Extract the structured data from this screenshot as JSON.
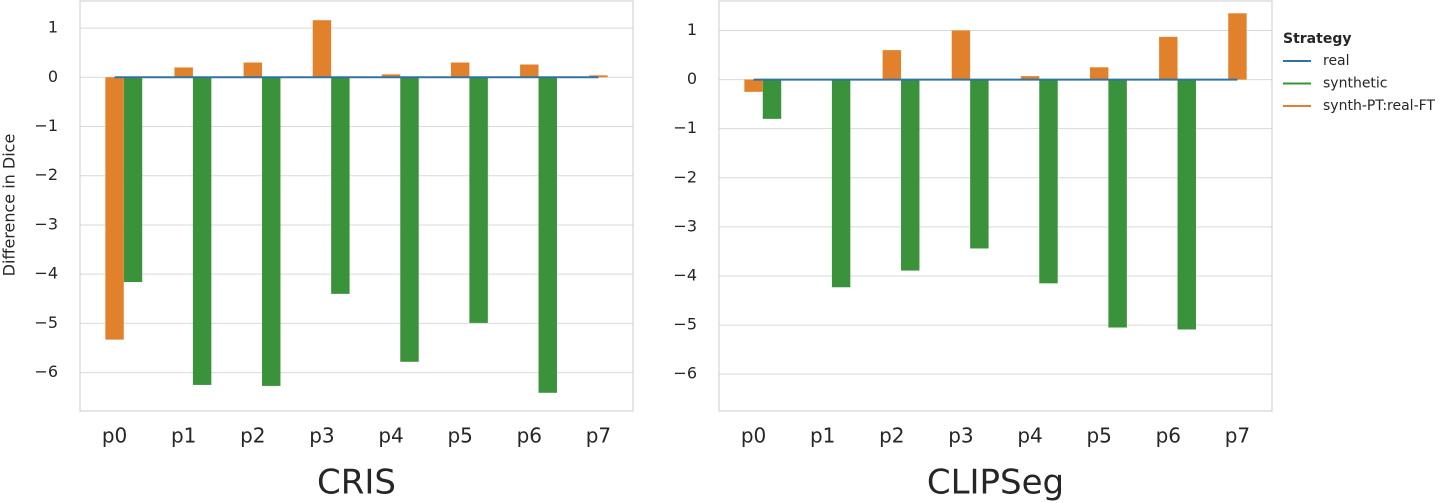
{
  "chart_data": [
    {
      "type": "bar",
      "xlabel": "CRIS",
      "ylabel": "Difference in Dice",
      "categories": [
        "p0",
        "p1",
        "p2",
        "p3",
        "p4",
        "p5",
        "p6",
        "p7"
      ],
      "series": [
        {
          "name": "real",
          "color": "#3274a1",
          "values": [
            0,
            0,
            0,
            0,
            0,
            0,
            0,
            0
          ]
        },
        {
          "name": "synthetic",
          "color": "#3a923a",
          "values": [
            -4.16,
            -6.25,
            -6.27,
            -4.4,
            -5.78,
            -4.99,
            -6.41,
            0
          ]
        },
        {
          "name": "synth-PT:real-FT",
          "color": "#e1812c",
          "values": [
            -5.33,
            0.2,
            0.3,
            1.16,
            0.06,
            0.3,
            0.26,
            0.04
          ]
        }
      ],
      "ylim": [
        -6.78,
        1.55
      ],
      "yticks": [
        {
          "value": -6,
          "label": "−6"
        },
        {
          "value": -5,
          "label": "−5"
        },
        {
          "value": -4,
          "label": "−4"
        },
        {
          "value": -3,
          "label": "−3"
        },
        {
          "value": -2,
          "label": "−2"
        },
        {
          "value": -1,
          "label": "−1"
        },
        0,
        1
      ],
      "grid": true
    },
    {
      "type": "bar",
      "xlabel": "CLIPSeg",
      "categories": [
        "p0",
        "p1",
        "p2",
        "p3",
        "p4",
        "p5",
        "p6",
        "p7"
      ],
      "series": [
        {
          "name": "real",
          "color": "#3274a1",
          "values": [
            0,
            0,
            0,
            0,
            0,
            0,
            0,
            0
          ]
        },
        {
          "name": "synthetic",
          "color": "#3a923a",
          "values": [
            -0.8,
            -4.23,
            -3.89,
            -3.44,
            -4.15,
            -5.05,
            -5.09,
            0
          ]
        },
        {
          "name": "synth-PT:real-FT",
          "color": "#e1812c",
          "values": [
            -0.25,
            0,
            0.6,
            1.0,
            0.07,
            0.25,
            0.87,
            1.35
          ]
        }
      ],
      "ylim": [
        -6.75,
        1.6
      ],
      "yticks": [
        {
          "value": -6,
          "label": "−6"
        },
        {
          "value": -5,
          "label": "−5"
        },
        {
          "value": -4,
          "label": "−4"
        },
        {
          "value": -3,
          "label": "−3"
        },
        {
          "value": -2,
          "label": "−2"
        },
        {
          "value": -1,
          "label": "−1"
        },
        0,
        1
      ],
      "grid": true,
      "legend": "right",
      "legend_title": "Strategy"
    }
  ]
}
